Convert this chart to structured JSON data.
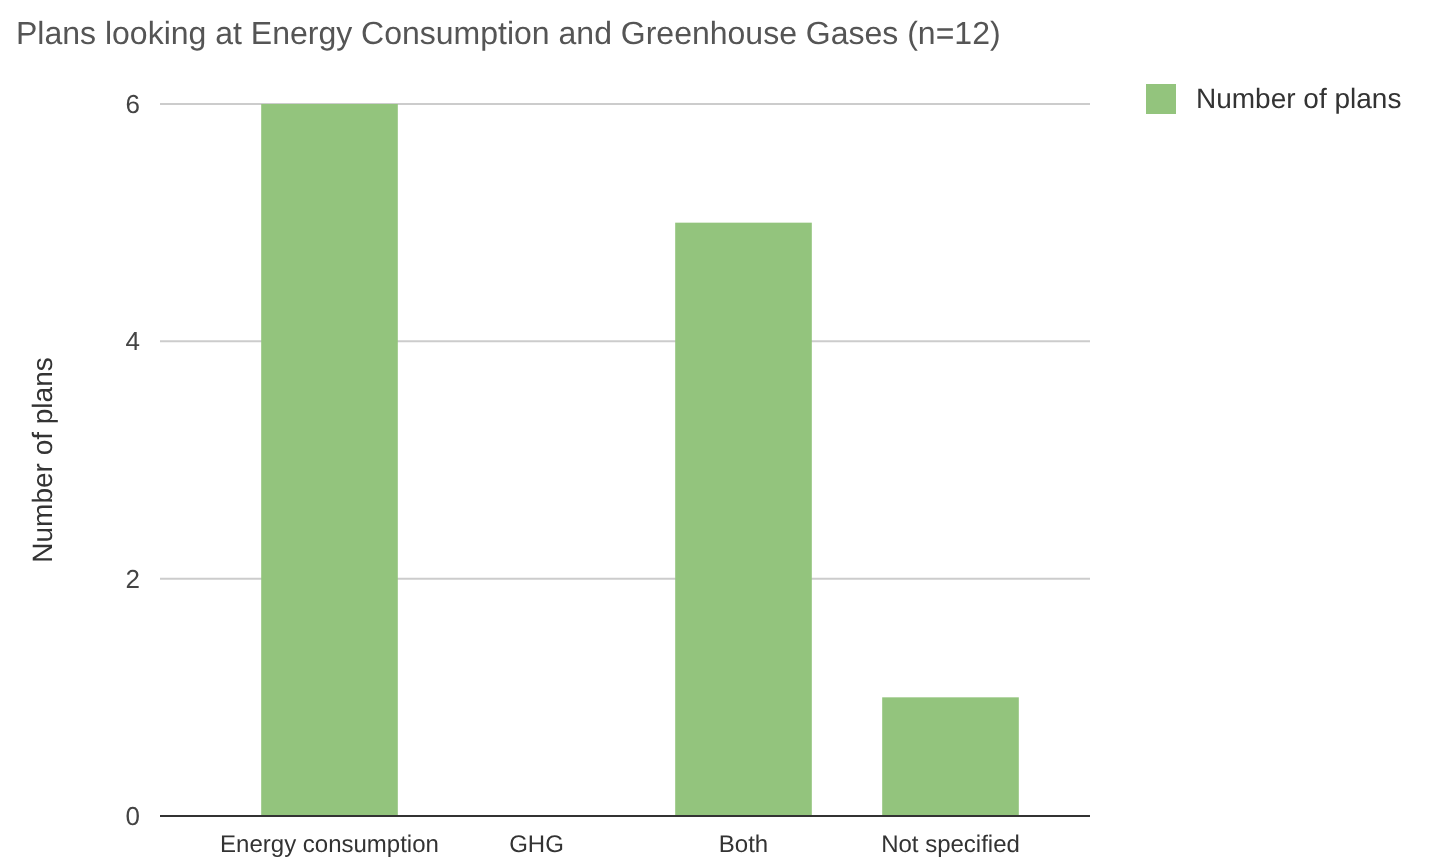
{
  "chart_data": {
    "type": "bar",
    "title": "Plans looking at Energy Consumption and Greenhouse Gases (n=12)",
    "ylabel": "Number of plans",
    "categories": [
      "Energy consumption",
      "GHG",
      "Both",
      "Not specified"
    ],
    "series": [
      {
        "name": "Number of plans",
        "color": "#93c47d",
        "values": [
          6,
          0,
          5,
          1
        ]
      }
    ],
    "ylim": [
      0,
      6
    ],
    "yticks": [
      0,
      2,
      4,
      6
    ],
    "grid": "y",
    "legend": "top right"
  }
}
